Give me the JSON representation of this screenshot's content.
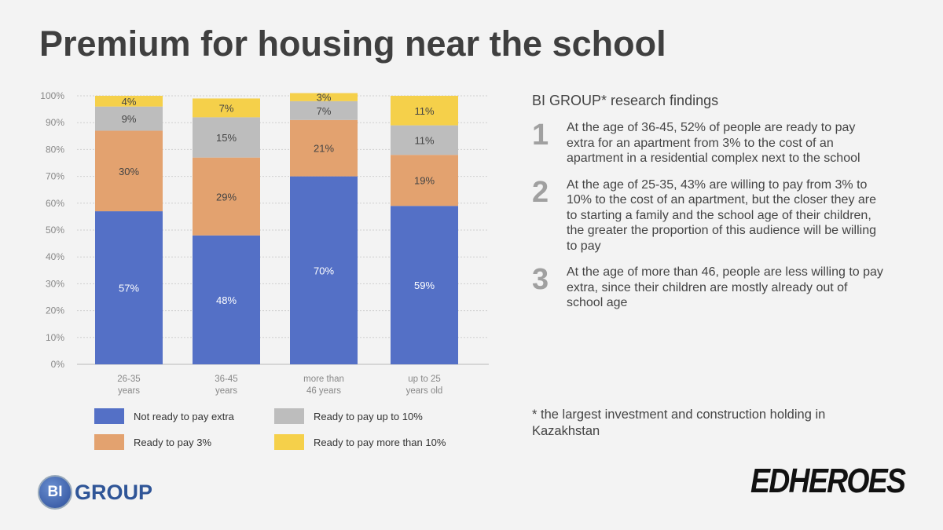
{
  "title": "Premium for housing near the school",
  "chart_data": {
    "type": "bar",
    "stacked": true,
    "categories": [
      [
        "26-35",
        "years"
      ],
      [
        "36-45",
        "years"
      ],
      [
        "more than",
        "46 years"
      ],
      [
        "up to 25",
        "years old"
      ]
    ],
    "ylim": [
      0,
      100
    ],
    "yticks": [
      "0%",
      "10%",
      "20%",
      "30%",
      "40%",
      "50%",
      "60%",
      "70%",
      "80%",
      "90%",
      "100%"
    ],
    "grid": true,
    "legend_position": "bottom",
    "series": [
      {
        "name": "Not ready to pay extra",
        "color": "#5470c6",
        "label_color": "#ffffff",
        "values": [
          57,
          48,
          70,
          59
        ]
      },
      {
        "name": "Ready to pay 3%",
        "color": "#e3a26f",
        "label_color": "#444444",
        "values": [
          30,
          29,
          21,
          19
        ]
      },
      {
        "name": "Ready to pay up to 10%",
        "color": "#bdbdbd",
        "label_color": "#444444",
        "values": [
          9,
          15,
          7,
          11
        ]
      },
      {
        "name": "Ready to pay more than 10%",
        "color": "#f5d04a",
        "label_color": "#444444",
        "values": [
          4,
          7,
          3,
          11
        ]
      }
    ]
  },
  "findings": {
    "heading": "BI GROUP* research findings",
    "items": [
      {
        "num": "1",
        "text": "At the age of 36-45, 52% of people are ready to pay extra for an apartment from 3% to the cost of an apartment in a residential complex next to the school"
      },
      {
        "num": "2",
        "text": "At the age of 25-35, 43% are willing to pay from 3% to 10% to the cost of an apartment, but the closer they are to starting a family and the school age of their children, the greater the proportion of this audience will be willing to pay"
      },
      {
        "num": "3",
        "text": "At the age of more than 46, people are less willing to pay extra, since their children are mostly already out of school age"
      }
    ],
    "footnote": "* the largest investment and construction holding in Kazakhstan"
  },
  "logos": {
    "bi_mark": "BI",
    "bi_text": "GROUP",
    "edheroes": "EDHEROES"
  }
}
